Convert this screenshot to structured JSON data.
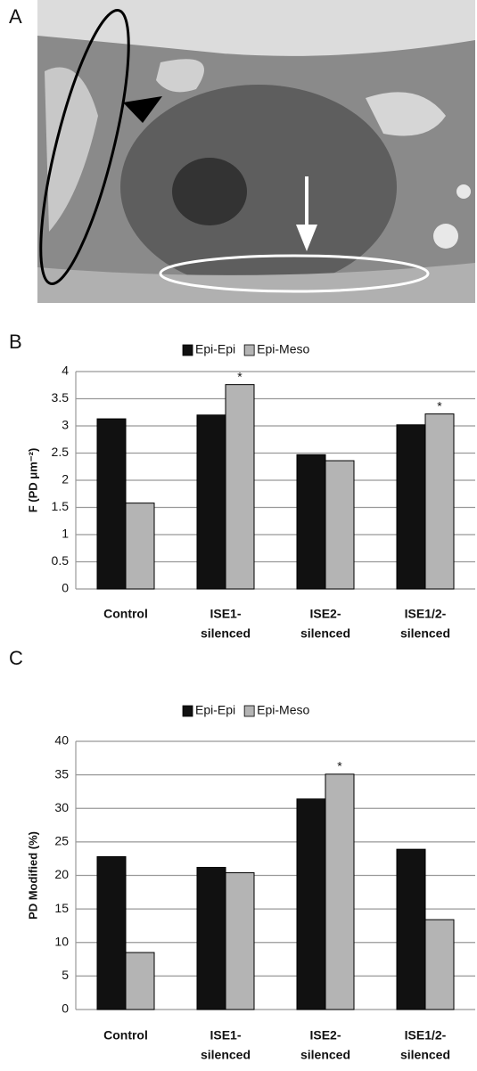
{
  "image_panel": {
    "label": "A"
  },
  "chart_data": [
    {
      "type": "bar",
      "label": "B",
      "ylabel": "F (PD μm⁻²)",
      "categories": [
        [
          "Control"
        ],
        [
          "ISE1-",
          "silenced"
        ],
        [
          "ISE2-",
          "silenced"
        ],
        [
          "ISE1/2-",
          "silenced"
        ]
      ],
      "series": [
        {
          "name": "Epi-Epi",
          "color": "#111111",
          "values": [
            3.13,
            3.2,
            2.47,
            3.02
          ]
        },
        {
          "name": "Epi-Meso",
          "color": "#b4b4b4",
          "values": [
            1.58,
            3.76,
            2.36,
            3.22
          ],
          "markers": [
            null,
            "*",
            null,
            "*"
          ]
        }
      ],
      "ylim": [
        0,
        4
      ],
      "yticks": [
        0,
        0.5,
        1,
        1.5,
        2,
        2.5,
        3,
        3.5,
        4
      ],
      "grid": true,
      "legend": "top"
    },
    {
      "type": "bar",
      "label": "C",
      "ylabel": "PD Modified  (%)",
      "categories": [
        [
          "Control"
        ],
        [
          "ISE1-",
          "silenced"
        ],
        [
          "ISE2-",
          "silenced"
        ],
        [
          "ISE1/2-",
          "silenced"
        ]
      ],
      "series": [
        {
          "name": "Epi-Epi",
          "color": "#111111",
          "values": [
            22.8,
            21.2,
            31.4,
            23.9
          ]
        },
        {
          "name": "Epi-Meso",
          "color": "#b4b4b4",
          "values": [
            8.5,
            20.4,
            35.1,
            13.4
          ],
          "markers": [
            null,
            null,
            "*",
            null
          ]
        }
      ],
      "ylim": [
        0,
        40
      ],
      "yticks": [
        0,
        5,
        10,
        15,
        20,
        25,
        30,
        35,
        40
      ],
      "grid": true,
      "legend": "top"
    }
  ]
}
